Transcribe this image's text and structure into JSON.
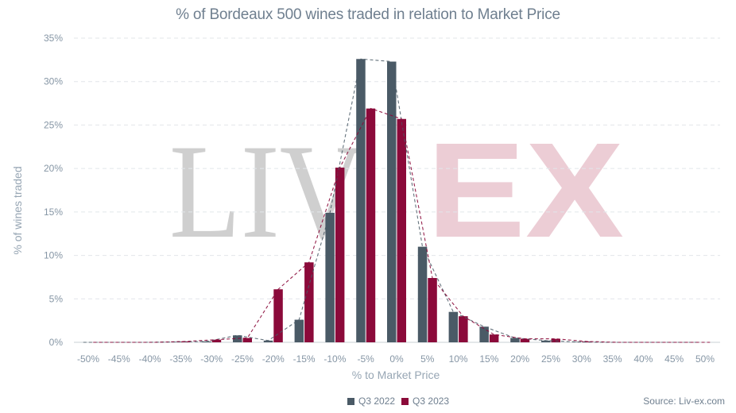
{
  "colors": {
    "q3_2022": "#4a5a66",
    "q3_2023": "#8b0a3a",
    "grid": "#e2e6ea",
    "watermark_gray": "#cfcfcf",
    "watermark_pink": "#eccdd5"
  },
  "watermark": {
    "left": "LIV",
    "right": "EX"
  },
  "source": "Source: Liv-ex.com",
  "chart_data": {
    "type": "bar",
    "title": "% of Bordeaux 500 wines traded in relation to Market Price",
    "xlabel": "% to Market Price",
    "ylabel": "% of wines traded",
    "categories": [
      "-50%",
      "-45%",
      "-40%",
      "-35%",
      "-30%",
      "-25%",
      "-20%",
      "-15%",
      "-10%",
      "-5%",
      "0%",
      "5%",
      "10%",
      "15%",
      "20%",
      "25%",
      "30%",
      "35%",
      "40%",
      "45%",
      "50%"
    ],
    "ylim": [
      0,
      35
    ],
    "yticks": [
      "0%",
      "5%",
      "10%",
      "15%",
      "20%",
      "25%",
      "30%",
      "35%"
    ],
    "grid": true,
    "legend_position": "bottom",
    "series": [
      {
        "name": "Q3 2022",
        "values": [
          0,
          0,
          0,
          0.05,
          0.1,
          0.8,
          0.2,
          2.6,
          14.9,
          32.6,
          32.3,
          11.0,
          3.5,
          1.8,
          0.5,
          0.2,
          0.05,
          0,
          0,
          0,
          0
        ]
      },
      {
        "name": "Q3 2023",
        "values": [
          0,
          0,
          0,
          0.1,
          0.3,
          0.5,
          6.1,
          9.2,
          20.1,
          26.9,
          25.7,
          7.4,
          3.0,
          0.9,
          0.4,
          0.4,
          0.1,
          0,
          0,
          0,
          0
        ]
      }
    ],
    "trendlines": "dashed line through each series"
  }
}
